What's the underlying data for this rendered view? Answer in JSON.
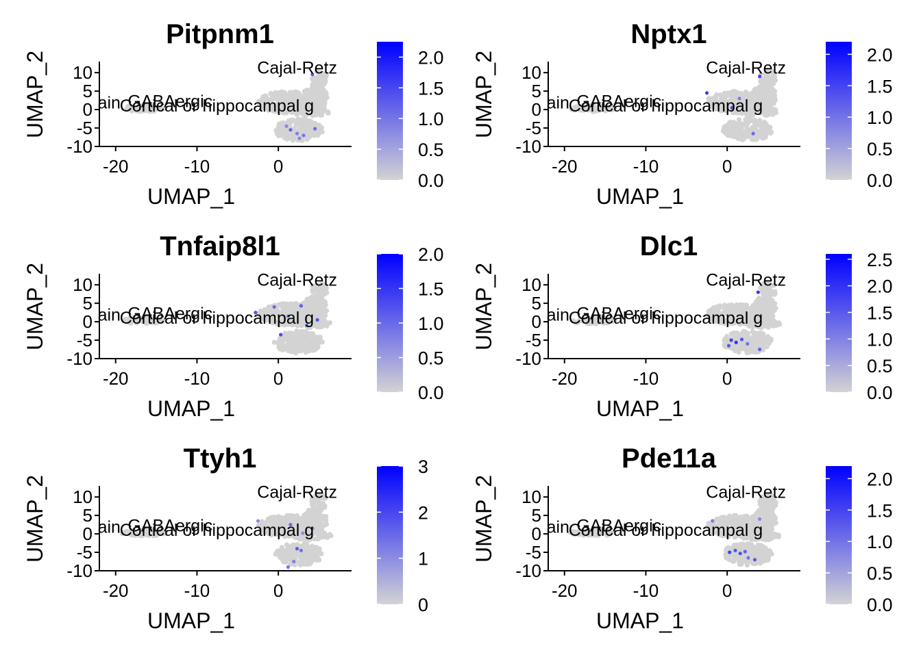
{
  "figure": {
    "background": "#ffffff",
    "low_color": "#d3d3d3",
    "high_color": "#0000ff",
    "points_color": "#d3d3d3"
  },
  "chart_data": [
    {
      "type": "scatter",
      "title": "Pitpnm1",
      "xlabel": "UMAP_1",
      "ylabel": "UMAP_2",
      "xlim": [
        -22,
        9
      ],
      "ylim": [
        -10,
        13
      ],
      "xticks": [
        -20,
        -10,
        0
      ],
      "yticks": [
        10,
        5,
        0,
        -5,
        -10
      ],
      "color_range": [
        0,
        2.25
      ],
      "colorbar_ticks": [
        "2.0",
        "1.5",
        "1.0",
        "0.5",
        "0.0"
      ],
      "colorbar_tick_values": [
        2.0,
        1.5,
        1.0,
        0.5,
        0.0
      ],
      "cluster_labels": [
        {
          "text": "Cajal-Retz",
          "x": -2.6,
          "y": 9.8
        },
        {
          "text": "GABAergic",
          "x": -18.5,
          "y": 0.7
        },
        {
          "text": "Cortical or hippocampal g",
          "x": -19.5,
          "y": -0.5
        },
        {
          "text": "ain",
          "x": -22.2,
          "y": 0.3
        }
      ],
      "highlights": [
        {
          "x": 1.5,
          "y": -5.5,
          "v": 1.2
        },
        {
          "x": 2.3,
          "y": -6.5,
          "v": 0.9
        },
        {
          "x": 3.1,
          "y": -7.0,
          "v": 1.0
        },
        {
          "x": 2.6,
          "y": -7.8,
          "v": 0.8
        },
        {
          "x": 4.5,
          "y": -5.2,
          "v": 1.1
        },
        {
          "x": 4.2,
          "y": 9.5,
          "v": 1.3
        },
        {
          "x": 1.0,
          "y": -4.5,
          "v": 0.8
        }
      ]
    },
    {
      "type": "scatter",
      "title": "Nptx1",
      "xlabel": "UMAP_1",
      "ylabel": "UMAP_2",
      "xlim": [
        -22,
        9
      ],
      "ylim": [
        -10,
        13
      ],
      "xticks": [
        -20,
        -10,
        0
      ],
      "yticks": [
        10,
        5,
        0,
        -5,
        -10
      ],
      "color_range": [
        0,
        2.2
      ],
      "colorbar_ticks": [
        "2.0",
        "1.5",
        "1.0",
        "0.5",
        "0.0"
      ],
      "colorbar_tick_values": [
        2.0,
        1.5,
        1.0,
        0.5,
        0.0
      ],
      "cluster_labels": [
        {
          "text": "Cajal-Retz",
          "x": -2.6,
          "y": 9.8
        },
        {
          "text": "GABAergic",
          "x": -18.5,
          "y": 0.7
        },
        {
          "text": "Cortical or hippocampal g",
          "x": -19.5,
          "y": -0.5
        },
        {
          "text": "ain",
          "x": -22.2,
          "y": 0.3
        }
      ],
      "highlights": [
        {
          "x": -2.5,
          "y": 4.5,
          "v": 1.6
        },
        {
          "x": 0.6,
          "y": 0.5,
          "v": 1.4
        },
        {
          "x": 4.0,
          "y": 9.0,
          "v": 1.5
        },
        {
          "x": 3.2,
          "y": -6.5,
          "v": 1.1
        },
        {
          "x": 1.5,
          "y": 3.0,
          "v": 0.9
        }
      ]
    },
    {
      "type": "scatter",
      "title": "Tnfaip8l1",
      "xlabel": "UMAP_1",
      "ylabel": "UMAP_2",
      "xlim": [
        -22,
        9
      ],
      "ylim": [
        -10,
        13
      ],
      "xticks": [
        -20,
        -10,
        0
      ],
      "yticks": [
        10,
        5,
        0,
        -5,
        -10
      ],
      "color_range": [
        0,
        2.0
      ],
      "colorbar_ticks": [
        "2.0",
        "1.5",
        "1.0",
        "0.5",
        "0.0"
      ],
      "colorbar_tick_values": [
        2.0,
        1.5,
        1.0,
        0.5,
        0.0
      ],
      "cluster_labels": [
        {
          "text": "Cajal-Retz",
          "x": -2.6,
          "y": 9.8
        },
        {
          "text": "GABAergic",
          "x": -18.5,
          "y": 0.7
        },
        {
          "text": "Cortical or hippocampal g",
          "x": -19.5,
          "y": -0.5
        },
        {
          "text": "ain",
          "x": -22.2,
          "y": 0.3
        }
      ],
      "highlights": [
        {
          "x": -2.8,
          "y": 2.5,
          "v": 1.2
        },
        {
          "x": -0.5,
          "y": 4.0,
          "v": 1.0
        },
        {
          "x": 0.3,
          "y": -3.5,
          "v": 1.3
        },
        {
          "x": 2.8,
          "y": 4.3,
          "v": 1.1
        },
        {
          "x": 4.8,
          "y": 0.5,
          "v": 1.2
        },
        {
          "x": 3.5,
          "y": -1.0,
          "v": 0.9
        },
        {
          "x": 1.2,
          "y": 1.5,
          "v": 0.8
        }
      ]
    },
    {
      "type": "scatter",
      "title": "Dlc1",
      "xlabel": "UMAP_1",
      "ylabel": "UMAP_2",
      "xlim": [
        -22,
        9
      ],
      "ylim": [
        -10,
        13
      ],
      "xticks": [
        -20,
        -10,
        0
      ],
      "yticks": [
        10,
        5,
        0,
        -5,
        -10
      ],
      "color_range": [
        0,
        2.6
      ],
      "colorbar_ticks": [
        "2.5",
        "2.0",
        "1.5",
        "1.0",
        "0.5",
        "0.0"
      ],
      "colorbar_tick_values": [
        2.5,
        2.0,
        1.5,
        1.0,
        0.5,
        0.0
      ],
      "cluster_labels": [
        {
          "text": "Cajal-Retz",
          "x": -2.6,
          "y": 9.8
        },
        {
          "text": "GABAergic",
          "x": -18.5,
          "y": 0.7
        },
        {
          "text": "Cortical or hippocampal g",
          "x": -19.5,
          "y": -0.5
        },
        {
          "text": "ain",
          "x": -22.2,
          "y": 0.3
        }
      ],
      "highlights": [
        {
          "x": 0.5,
          "y": -5.0,
          "v": 1.8
        },
        {
          "x": 1.1,
          "y": -5.6,
          "v": 2.0
        },
        {
          "x": 1.8,
          "y": -4.8,
          "v": 1.6
        },
        {
          "x": 0.2,
          "y": -6.5,
          "v": 1.5
        },
        {
          "x": 3.8,
          "y": 8.0,
          "v": 1.9
        },
        {
          "x": 4.0,
          "y": -7.5,
          "v": 1.4
        },
        {
          "x": 2.5,
          "y": -6.0,
          "v": 1.2
        }
      ]
    },
    {
      "type": "scatter",
      "title": "Ttyh1",
      "xlabel": "UMAP_1",
      "ylabel": "UMAP_2",
      "xlim": [
        -22,
        9
      ],
      "ylim": [
        -10,
        13
      ],
      "xticks": [
        -20,
        -10,
        0
      ],
      "yticks": [
        10,
        5,
        0,
        -5,
        -10
      ],
      "color_range": [
        0,
        3.0
      ],
      "colorbar_ticks": [
        "3",
        "2",
        "1",
        "0"
      ],
      "colorbar_tick_values": [
        3,
        2,
        1,
        0
      ],
      "cluster_labels": [
        {
          "text": "Cajal-Retz",
          "x": -2.6,
          "y": 9.8
        },
        {
          "text": "GABAergic",
          "x": -18.5,
          "y": 0.7
        },
        {
          "text": "Cortical or hippocampal g",
          "x": -19.5,
          "y": -0.5
        },
        {
          "text": "ain",
          "x": -22.2,
          "y": 0.3
        }
      ],
      "highlights": [
        {
          "x": 1.5,
          "y": 2.5,
          "v": 1.5
        },
        {
          "x": -2.5,
          "y": 3.5,
          "v": 1.0
        },
        {
          "x": 2.3,
          "y": -4.0,
          "v": 1.7
        },
        {
          "x": 2.8,
          "y": -4.5,
          "v": 1.4
        },
        {
          "x": 1.9,
          "y": -7.5,
          "v": 1.2
        },
        {
          "x": 4.2,
          "y": 1.5,
          "v": 1.1
        },
        {
          "x": 3.0,
          "y": 0.2,
          "v": 1.0
        },
        {
          "x": 1.2,
          "y": -9.0,
          "v": 1.3
        }
      ]
    },
    {
      "type": "scatter",
      "title": "Pde11a",
      "xlabel": "UMAP_1",
      "ylabel": "UMAP_2",
      "xlim": [
        -22,
        9
      ],
      "ylim": [
        -10,
        13
      ],
      "xticks": [
        -20,
        -10,
        0
      ],
      "yticks": [
        10,
        5,
        0,
        -5,
        -10
      ],
      "color_range": [
        0,
        2.2
      ],
      "colorbar_ticks": [
        "2.0",
        "1.5",
        "1.0",
        "0.5",
        "0.0"
      ],
      "colorbar_tick_values": [
        2.0,
        1.5,
        1.0,
        0.5,
        0.0
      ],
      "cluster_labels": [
        {
          "text": "Cajal-Retz",
          "x": -2.6,
          "y": 9.8
        },
        {
          "text": "GABAergic",
          "x": -18.5,
          "y": 0.7
        },
        {
          "text": "Cortical or hippocampal g",
          "x": -19.5,
          "y": -0.5
        },
        {
          "text": "ain",
          "x": -22.2,
          "y": 0.3
        }
      ],
      "highlights": [
        {
          "x": 0.3,
          "y": -5.0,
          "v": 1.5
        },
        {
          "x": 1.0,
          "y": -4.5,
          "v": 1.3
        },
        {
          "x": 1.6,
          "y": -5.3,
          "v": 1.4
        },
        {
          "x": 2.2,
          "y": -4.8,
          "v": 1.2
        },
        {
          "x": 3.4,
          "y": -7.0,
          "v": 1.3
        },
        {
          "x": 2.6,
          "y": -6.5,
          "v": 1.0
        },
        {
          "x": -1.8,
          "y": 3.5,
          "v": 0.9
        },
        {
          "x": 4.0,
          "y": 4.0,
          "v": 0.8
        }
      ]
    }
  ]
}
